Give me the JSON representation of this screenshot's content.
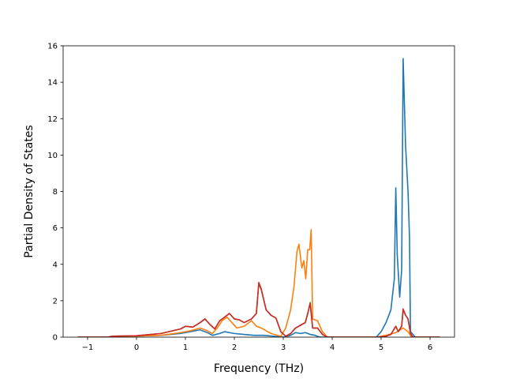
{
  "chart_data": {
    "type": "line",
    "title": "",
    "xlabel": "Frequency (THz)",
    "ylabel": "Partial Density of States",
    "xlim": [
      -1.5,
      6.5
    ],
    "ylim": [
      0,
      16
    ],
    "xticks": [
      -1,
      0,
      1,
      2,
      3,
      4,
      5,
      6
    ],
    "xtick_labels": [
      "−1",
      "0",
      "1",
      "2",
      "3",
      "4",
      "5",
      "6"
    ],
    "yticks": [
      0,
      2,
      4,
      6,
      8,
      10,
      12,
      14,
      16
    ],
    "ytick_labels": [
      "0",
      "2",
      "4",
      "6",
      "8",
      "10",
      "12",
      "14",
      "16"
    ],
    "grid": false,
    "legend": "none",
    "series": [
      {
        "color": "#1f77b4",
        "points": [
          [
            -1.2,
            0
          ],
          [
            -0.6,
            0
          ],
          [
            -0.5,
            0.03
          ],
          [
            0,
            0.06
          ],
          [
            0.5,
            0.1
          ],
          [
            0.9,
            0.2
          ],
          [
            1.1,
            0.3
          ],
          [
            1.3,
            0.4
          ],
          [
            1.45,
            0.25
          ],
          [
            1.55,
            0.1
          ],
          [
            1.7,
            0.2
          ],
          [
            1.8,
            0.3
          ],
          [
            1.9,
            0.25
          ],
          [
            2.0,
            0.2
          ],
          [
            2.2,
            0.15
          ],
          [
            2.4,
            0.1
          ],
          [
            2.6,
            0.1
          ],
          [
            2.8,
            0.05
          ],
          [
            3.0,
            0
          ],
          [
            3.15,
            0.1
          ],
          [
            3.25,
            0.25
          ],
          [
            3.35,
            0.2
          ],
          [
            3.45,
            0.25
          ],
          [
            3.55,
            0.15
          ],
          [
            3.65,
            0.1
          ],
          [
            3.75,
            0
          ],
          [
            4.9,
            0
          ],
          [
            5.0,
            0.3
          ],
          [
            5.1,
            0.8
          ],
          [
            5.2,
            1.5
          ],
          [
            5.27,
            3.2
          ],
          [
            5.3,
            8.2
          ],
          [
            5.33,
            4.5
          ],
          [
            5.38,
            2.2
          ],
          [
            5.42,
            3.7
          ],
          [
            5.45,
            15.3
          ],
          [
            5.5,
            10.5
          ],
          [
            5.55,
            8.0
          ],
          [
            5.58,
            5.5
          ],
          [
            5.6,
            0.3
          ],
          [
            5.7,
            0
          ],
          [
            6.2,
            0
          ]
        ]
      },
      {
        "color": "#ff7f0e",
        "points": [
          [
            -1.2,
            0
          ],
          [
            -0.6,
            0
          ],
          [
            -0.5,
            0.03
          ],
          [
            0,
            0.06
          ],
          [
            0.5,
            0.1
          ],
          [
            0.9,
            0.25
          ],
          [
            1.1,
            0.35
          ],
          [
            1.3,
            0.5
          ],
          [
            1.45,
            0.35
          ],
          [
            1.55,
            0.2
          ],
          [
            1.65,
            0.5
          ],
          [
            1.75,
            0.9
          ],
          [
            1.85,
            1.1
          ],
          [
            1.95,
            0.8
          ],
          [
            2.05,
            0.5
          ],
          [
            2.2,
            0.6
          ],
          [
            2.35,
            0.9
          ],
          [
            2.45,
            0.6
          ],
          [
            2.55,
            0.5
          ],
          [
            2.75,
            0.2
          ],
          [
            2.95,
            0.05
          ],
          [
            3.05,
            0.5
          ],
          [
            3.15,
            1.5
          ],
          [
            3.22,
            2.8
          ],
          [
            3.28,
            4.7
          ],
          [
            3.32,
            5.1
          ],
          [
            3.38,
            3.8
          ],
          [
            3.42,
            4.2
          ],
          [
            3.46,
            3.2
          ],
          [
            3.5,
            4.8
          ],
          [
            3.54,
            4.8
          ],
          [
            3.57,
            5.9
          ],
          [
            3.6,
            1.0
          ],
          [
            3.7,
            0.9
          ],
          [
            3.8,
            0.3
          ],
          [
            3.9,
            0
          ],
          [
            4.9,
            0
          ],
          [
            5.1,
            0.1
          ],
          [
            5.3,
            0.25
          ],
          [
            5.45,
            0.5
          ],
          [
            5.55,
            0.3
          ],
          [
            5.62,
            0
          ],
          [
            6.2,
            0
          ]
        ]
      },
      {
        "color": "#2ca02c",
        "points": [
          [
            -1.2,
            0
          ],
          [
            -0.6,
            0
          ],
          [
            -0.5,
            0.05
          ],
          [
            0,
            0.08
          ],
          [
            0.5,
            0.2
          ],
          [
            0.9,
            0.45
          ],
          [
            1.0,
            0.6
          ],
          [
            1.15,
            0.55
          ],
          [
            1.3,
            0.8
          ],
          [
            1.4,
            1.0
          ],
          [
            1.5,
            0.7
          ],
          [
            1.6,
            0.45
          ],
          [
            1.7,
            0.9
          ],
          [
            1.8,
            1.1
          ],
          [
            1.9,
            1.3
          ],
          [
            2.0,
            1.0
          ],
          [
            2.1,
            0.95
          ],
          [
            2.2,
            0.8
          ],
          [
            2.35,
            1.0
          ],
          [
            2.45,
            1.3
          ],
          [
            2.5,
            2.95
          ],
          [
            2.55,
            2.6
          ],
          [
            2.65,
            1.5
          ],
          [
            2.75,
            1.2
          ],
          [
            2.85,
            1.05
          ],
          [
            2.95,
            0.3
          ],
          [
            3.05,
            0.05
          ],
          [
            3.15,
            0.2
          ],
          [
            3.25,
            0.5
          ],
          [
            3.35,
            0.65
          ],
          [
            3.45,
            0.8
          ],
          [
            3.5,
            1.3
          ],
          [
            3.55,
            1.9
          ],
          [
            3.6,
            0.5
          ],
          [
            3.7,
            0.5
          ],
          [
            3.8,
            0.15
          ],
          [
            3.9,
            0
          ],
          [
            4.9,
            0
          ],
          [
            5.1,
            0.05
          ],
          [
            5.2,
            0.15
          ],
          [
            5.3,
            0.6
          ],
          [
            5.35,
            0.3
          ],
          [
            5.42,
            0.6
          ],
          [
            5.45,
            1.5
          ],
          [
            5.5,
            1.2
          ],
          [
            5.55,
            1.0
          ],
          [
            5.6,
            0.2
          ],
          [
            5.65,
            0
          ],
          [
            6.2,
            0
          ]
        ]
      },
      {
        "color": "#d62728",
        "points": [
          [
            -1.2,
            0
          ],
          [
            -0.6,
            0
          ],
          [
            -0.5,
            0.05
          ],
          [
            0,
            0.08
          ],
          [
            0.5,
            0.2
          ],
          [
            0.9,
            0.45
          ],
          [
            1.0,
            0.6
          ],
          [
            1.15,
            0.55
          ],
          [
            1.3,
            0.8
          ],
          [
            1.4,
            1.0
          ],
          [
            1.5,
            0.7
          ],
          [
            1.6,
            0.45
          ],
          [
            1.7,
            0.9
          ],
          [
            1.8,
            1.1
          ],
          [
            1.9,
            1.3
          ],
          [
            2.0,
            1.0
          ],
          [
            2.1,
            0.95
          ],
          [
            2.2,
            0.8
          ],
          [
            2.35,
            1.0
          ],
          [
            2.45,
            1.3
          ],
          [
            2.5,
            3.0
          ],
          [
            2.55,
            2.65
          ],
          [
            2.65,
            1.5
          ],
          [
            2.75,
            1.2
          ],
          [
            2.85,
            1.05
          ],
          [
            2.95,
            0.3
          ],
          [
            3.05,
            0.05
          ],
          [
            3.15,
            0.2
          ],
          [
            3.25,
            0.5
          ],
          [
            3.35,
            0.65
          ],
          [
            3.45,
            0.8
          ],
          [
            3.5,
            1.3
          ],
          [
            3.55,
            1.85
          ],
          [
            3.6,
            0.5
          ],
          [
            3.7,
            0.5
          ],
          [
            3.8,
            0.15
          ],
          [
            3.9,
            0
          ],
          [
            4.9,
            0
          ],
          [
            5.1,
            0.05
          ],
          [
            5.2,
            0.15
          ],
          [
            5.3,
            0.6
          ],
          [
            5.35,
            0.3
          ],
          [
            5.42,
            0.6
          ],
          [
            5.45,
            1.55
          ],
          [
            5.5,
            1.2
          ],
          [
            5.55,
            1.0
          ],
          [
            5.6,
            0.2
          ],
          [
            5.65,
            0
          ],
          [
            6.2,
            0
          ]
        ]
      }
    ]
  }
}
